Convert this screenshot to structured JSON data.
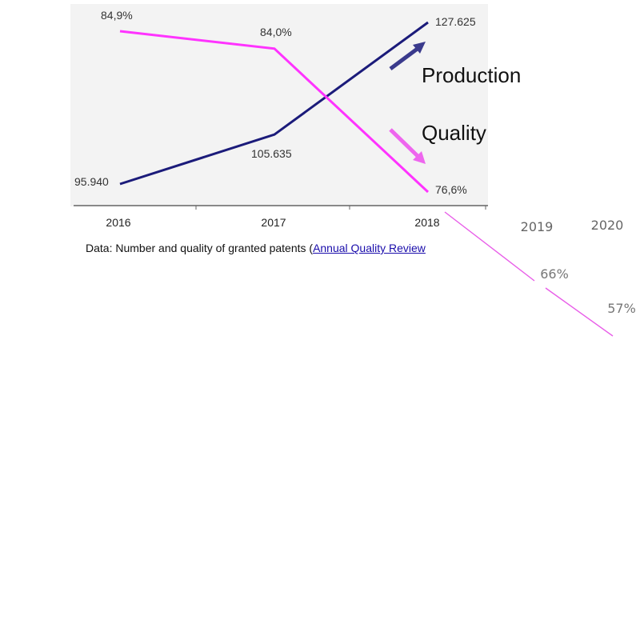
{
  "chart_data": {
    "type": "line",
    "categories": [
      "2016",
      "2017",
      "2018"
    ],
    "series": [
      {
        "name": "Production",
        "values": [
          95940,
          105635,
          127625
        ],
        "labels": [
          "95.940",
          "105.635",
          "127.625"
        ],
        "color": "#1b1b7a"
      },
      {
        "name": "Quality",
        "values": [
          84.9,
          84.0,
          76.6
        ],
        "labels": [
          "84,9%",
          "84,0%",
          "76,6%"
        ],
        "color": "#ff33ff"
      }
    ],
    "annotations": {
      "production_label": "Production",
      "quality_label": "Quality"
    },
    "extension": {
      "categories": [
        "2019",
        "2020"
      ],
      "quality_labels": [
        "66%",
        "57%"
      ],
      "color": "#e85de8"
    }
  },
  "caption": {
    "prefix": "Data: Number and quality of granted patents (",
    "link_text": "Annual Quality Review"
  },
  "colors": {
    "production": "#1b1b7a",
    "quality": "#ff33ff",
    "background_panel": "#f3f3f3"
  }
}
